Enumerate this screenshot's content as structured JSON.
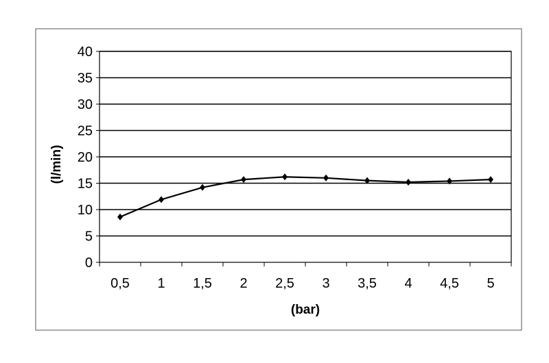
{
  "chart_data": {
    "type": "line",
    "title": "",
    "xlabel": "(bar)",
    "ylabel": "(l/min)",
    "categories": [
      "0,5",
      "1",
      "1,5",
      "2",
      "2,5",
      "3",
      "3,5",
      "4",
      "4,5",
      "5"
    ],
    "values": [
      8.6,
      11.9,
      14.2,
      15.7,
      16.2,
      16.0,
      15.5,
      15.2,
      15.4,
      15.7
    ],
    "ylim": [
      0,
      40
    ],
    "yticks": [
      "0",
      "5",
      "10",
      "15",
      "20",
      "25",
      "30",
      "35",
      "40"
    ],
    "grid": true,
    "line_color": "#000000",
    "marker": "diamond"
  }
}
